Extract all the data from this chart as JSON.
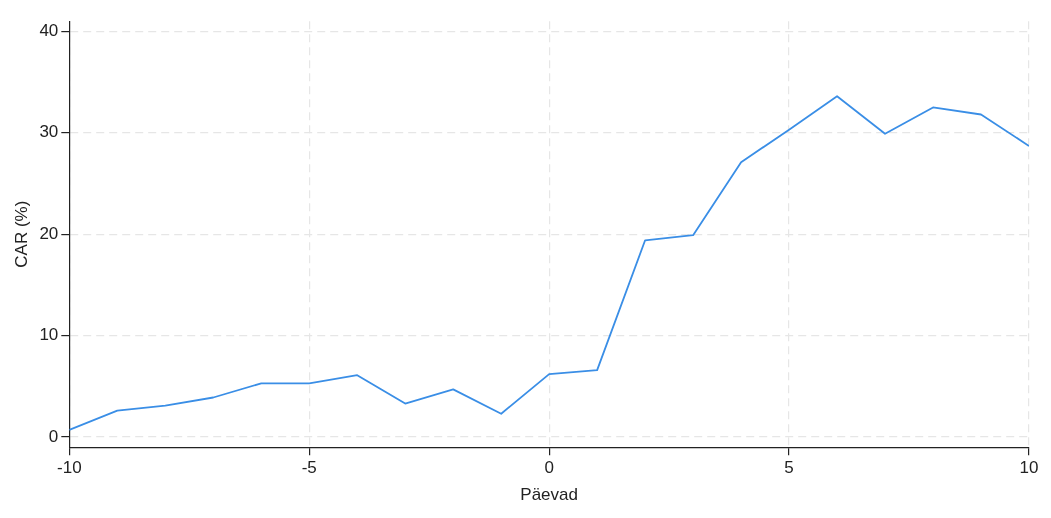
{
  "chart_data": {
    "type": "line",
    "xlabel": "Päevad",
    "ylabel": "CAR (%)",
    "x": [
      -10,
      -9,
      -8,
      -7,
      -6,
      -5,
      -4,
      -3,
      -2,
      -1,
      0,
      1,
      2,
      3,
      4,
      5,
      6,
      7,
      8,
      9,
      10
    ],
    "series": [
      {
        "color": "#3a8ee6",
        "values": [
          0.7,
          2.6,
          3.1,
          3.9,
          5.3,
          5.3,
          6.1,
          3.3,
          4.7,
          2.3,
          6.2,
          6.6,
          19.4,
          19.9,
          27.1,
          30.3,
          33.6,
          29.9,
          32.5,
          31.8,
          28.7
        ]
      }
    ],
    "xlim": [
      -10,
      10
    ],
    "xticks": [
      -10,
      -5,
      0,
      5,
      10
    ],
    "ylim": [
      -1,
      41
    ],
    "yticks": [
      0,
      10,
      20,
      30,
      40
    ],
    "grid": true,
    "legend": false,
    "marker": "none",
    "line_style": "solid"
  }
}
